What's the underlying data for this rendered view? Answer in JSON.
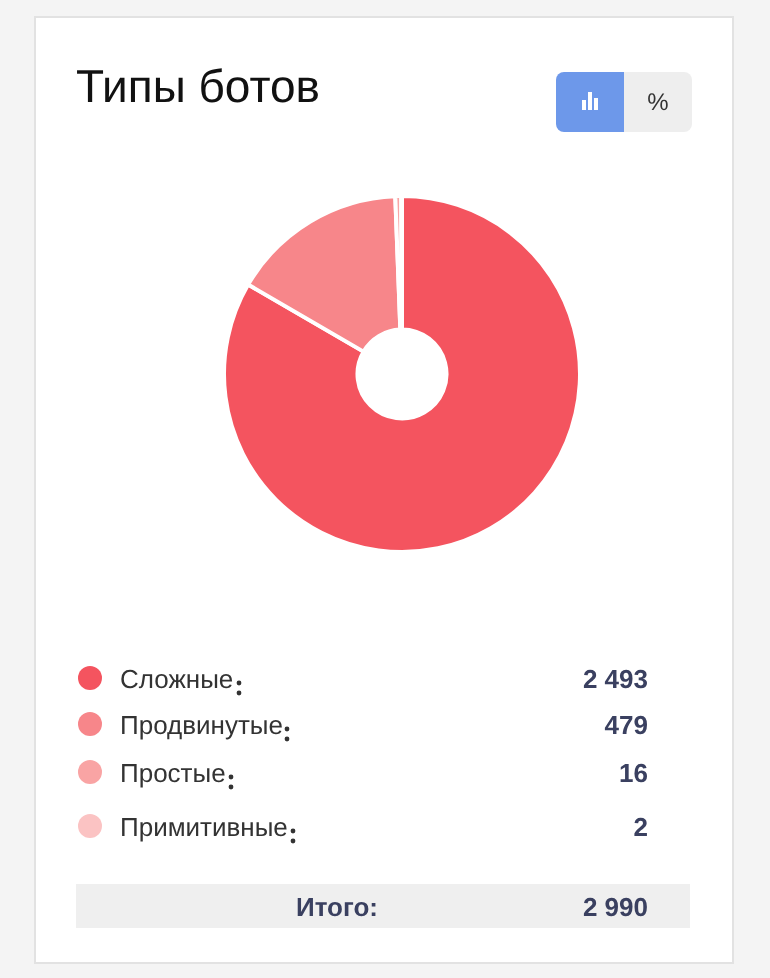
{
  "chart_data": {
    "type": "donut",
    "title": "Типы ботов",
    "categories": [
      "Сложные",
      "Продвинутые",
      "Простые",
      "Примитивные"
    ],
    "values": [
      2493,
      479,
      16,
      2
    ],
    "value_labels": [
      "2 493",
      "479",
      "16",
      "2"
    ],
    "colors": [
      "#f4545f",
      "#f7868a",
      "#f9a4a4",
      "#fbc3c3"
    ],
    "legend": "bottom",
    "annotations": [
      "%",
      "Итого:",
      "2 990"
    ]
  }
}
